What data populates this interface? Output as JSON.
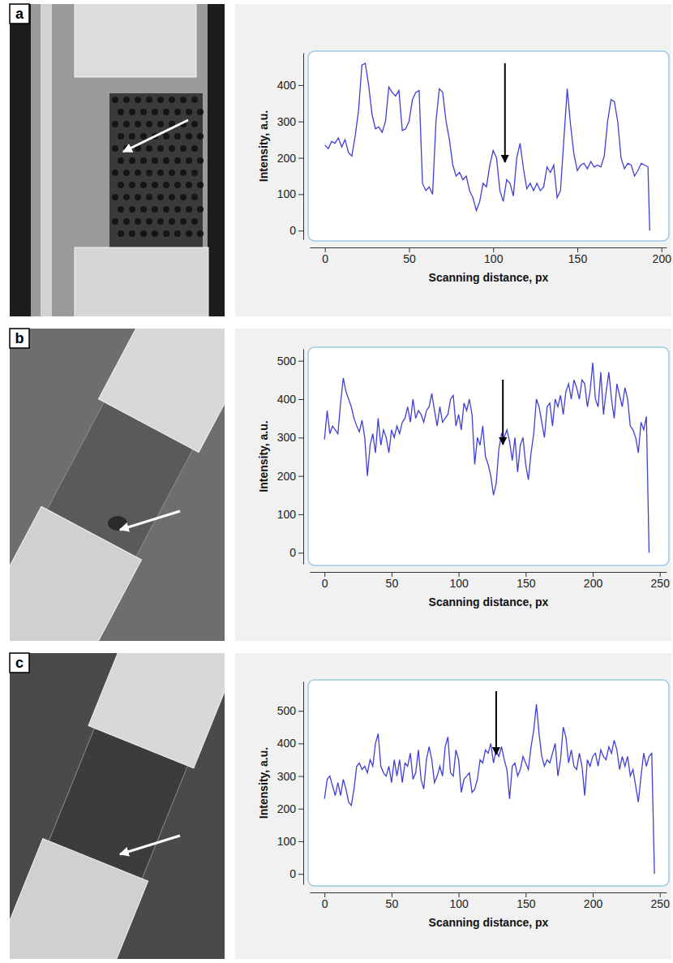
{
  "chart_data": [
    {
      "type": "line",
      "panel": "a",
      "x_label": "Scanning distance, px",
      "y_label": "Intensity, a.u.",
      "grid": false,
      "xlim": [
        -9,
        203
      ],
      "ylim": [
        -24,
        489
      ],
      "xticks": [
        0,
        50,
        100,
        150,
        200
      ],
      "yticks": [
        0,
        100,
        200,
        300,
        400
      ],
      "arrow_x": 107,
      "x": [
        0,
        2,
        4,
        6,
        8,
        10,
        12,
        14,
        16,
        18,
        20,
        22,
        24,
        26,
        28,
        30,
        32,
        34,
        36,
        38,
        40,
        42,
        44,
        46,
        48,
        50,
        52,
        54,
        56,
        58,
        60,
        62,
        64,
        66,
        68,
        70,
        72,
        74,
        76,
        78,
        80,
        82,
        84,
        86,
        88,
        90,
        92,
        94,
        96,
        98,
        100,
        102,
        104,
        106,
        108,
        110,
        112,
        114,
        116,
        118,
        120,
        122,
        124,
        126,
        128,
        130,
        132,
        134,
        136,
        138,
        140,
        142,
        144,
        146,
        148,
        150,
        152,
        154,
        156,
        158,
        160,
        162,
        164,
        166,
        168,
        170,
        172,
        174,
        176,
        178,
        180,
        182,
        184,
        186,
        188,
        190,
        192,
        193
      ],
      "series": [
        {
          "color": "#3f3fd8",
          "values": [
            235,
            225,
            245,
            240,
            255,
            230,
            250,
            215,
            205,
            260,
            330,
            455,
            460,
            400,
            320,
            280,
            285,
            270,
            300,
            395,
            380,
            370,
            385,
            275,
            280,
            300,
            360,
            380,
            385,
            130,
            110,
            120,
            100,
            300,
            390,
            380,
            300,
            250,
            180,
            150,
            160,
            140,
            150,
            110,
            90,
            55,
            80,
            130,
            120,
            180,
            220,
            200,
            110,
            80,
            140,
            130,
            95,
            200,
            240,
            170,
            115,
            130,
            110,
            130,
            110,
            120,
            175,
            160,
            180,
            90,
            110,
            250,
            390,
            290,
            210,
            165,
            180,
            185,
            170,
            190,
            175,
            180,
            175,
            205,
            300,
            360,
            355,
            300,
            200,
            170,
            185,
            180,
            150,
            165,
            185,
            180,
            175,
            0
          ]
        }
      ]
    },
    {
      "type": "line",
      "panel": "b",
      "x_label": "Scanning distance, px",
      "y_label": "Intensity, a.u.",
      "grid": false,
      "xlim": [
        -11,
        255
      ],
      "ylim": [
        -29,
        531
      ],
      "xticks": [
        0,
        50,
        100,
        150,
        200,
        250
      ],
      "yticks": [
        0,
        100,
        200,
        300,
        400,
        500
      ],
      "arrow_x": 133,
      "x": [
        0,
        2,
        4,
        6,
        8,
        10,
        12,
        14,
        16,
        18,
        20,
        22,
        24,
        26,
        28,
        30,
        32,
        34,
        36,
        38,
        40,
        42,
        44,
        46,
        48,
        50,
        52,
        54,
        56,
        58,
        60,
        62,
        64,
        66,
        68,
        70,
        72,
        74,
        76,
        78,
        80,
        82,
        84,
        86,
        88,
        90,
        92,
        94,
        96,
        98,
        100,
        102,
        104,
        106,
        108,
        110,
        112,
        114,
        116,
        118,
        120,
        122,
        124,
        126,
        128,
        130,
        132,
        134,
        136,
        138,
        140,
        142,
        144,
        146,
        148,
        150,
        152,
        154,
        156,
        158,
        160,
        162,
        164,
        166,
        168,
        170,
        172,
        174,
        176,
        178,
        180,
        182,
        184,
        186,
        188,
        190,
        192,
        194,
        196,
        198,
        200,
        202,
        204,
        206,
        208,
        210,
        212,
        214,
        216,
        218,
        220,
        222,
        224,
        226,
        228,
        230,
        232,
        234,
        236,
        238,
        240,
        242
      ],
      "series": [
        {
          "color": "#3f3fd8",
          "values": [
            295,
            370,
            310,
            330,
            320,
            310,
            390,
            455,
            420,
            400,
            380,
            350,
            330,
            315,
            345,
            300,
            200,
            280,
            310,
            260,
            350,
            280,
            320,
            300,
            260,
            320,
            300,
            330,
            310,
            340,
            350,
            380,
            340,
            400,
            350,
            370,
            360,
            340,
            370,
            380,
            415,
            370,
            330,
            380,
            340,
            350,
            360,
            400,
            410,
            330,
            360,
            320,
            390,
            370,
            400,
            360,
            230,
            300,
            280,
            330,
            250,
            230,
            200,
            150,
            180,
            270,
            310,
            300,
            320,
            290,
            240,
            300,
            210,
            280,
            300,
            230,
            190,
            260,
            310,
            400,
            380,
            340,
            300,
            380,
            390,
            330,
            400,
            380,
            410,
            360,
            420,
            440,
            400,
            450,
            430,
            400,
            450,
            440,
            380,
            420,
            495,
            400,
            380,
            470,
            360,
            420,
            470,
            400,
            350,
            440,
            410,
            380,
            430,
            400,
            330,
            320,
            300,
            260,
            340,
            320,
            355,
            0
          ]
        }
      ]
    },
    {
      "type": "line",
      "panel": "c",
      "x_label": "Scanning distance, px",
      "y_label": "Intensity, a.u.",
      "grid": false,
      "xlim": [
        -11,
        255
      ],
      "ylim": [
        -32,
        590
      ],
      "xticks": [
        0,
        50,
        100,
        150,
        200,
        250
      ],
      "yticks": [
        0,
        100,
        200,
        300,
        400,
        500
      ],
      "arrow_x": 128,
      "x": [
        0,
        2,
        4,
        6,
        8,
        10,
        12,
        14,
        16,
        18,
        20,
        22,
        24,
        26,
        28,
        30,
        32,
        34,
        36,
        38,
        40,
        42,
        44,
        46,
        48,
        50,
        52,
        54,
        56,
        58,
        60,
        62,
        64,
        66,
        68,
        70,
        72,
        74,
        76,
        78,
        80,
        82,
        84,
        86,
        88,
        90,
        92,
        94,
        96,
        98,
        100,
        102,
        104,
        106,
        108,
        110,
        112,
        114,
        116,
        118,
        120,
        122,
        124,
        126,
        128,
        130,
        132,
        134,
        136,
        138,
        140,
        142,
        144,
        146,
        148,
        150,
        152,
        154,
        156,
        158,
        160,
        162,
        164,
        166,
        168,
        170,
        172,
        174,
        176,
        178,
        180,
        182,
        184,
        186,
        188,
        190,
        192,
        194,
        196,
        198,
        200,
        202,
        204,
        206,
        208,
        210,
        212,
        214,
        216,
        218,
        220,
        222,
        224,
        226,
        228,
        230,
        232,
        234,
        236,
        238,
        240,
        242,
        244,
        246
      ],
      "series": [
        {
          "color": "#3f3fd8",
          "values": [
            230,
            290,
            300,
            270,
            240,
            280,
            240,
            290,
            260,
            220,
            210,
            260,
            330,
            340,
            320,
            330,
            310,
            350,
            330,
            400,
            430,
            330,
            310,
            300,
            330,
            280,
            350,
            300,
            350,
            280,
            340,
            330,
            370,
            290,
            310,
            380,
            290,
            260,
            350,
            390,
            350,
            280,
            300,
            330,
            300,
            390,
            420,
            310,
            300,
            380,
            350,
            250,
            290,
            300,
            310,
            250,
            260,
            290,
            350,
            340,
            380,
            370,
            400,
            340,
            380,
            360,
            390,
            350,
            320,
            230,
            330,
            340,
            300,
            320,
            360,
            340,
            320,
            390,
            440,
            520,
            430,
            360,
            330,
            350,
            340,
            370,
            400,
            300,
            350,
            450,
            420,
            340,
            380,
            330,
            320,
            370,
            330,
            240,
            350,
            330,
            360,
            370,
            330,
            380,
            360,
            350,
            390,
            370,
            410,
            380,
            320,
            360,
            330,
            360,
            300,
            320,
            270,
            220,
            300,
            370,
            330,
            360,
            370,
            0
          ]
        }
      ]
    }
  ]
}
